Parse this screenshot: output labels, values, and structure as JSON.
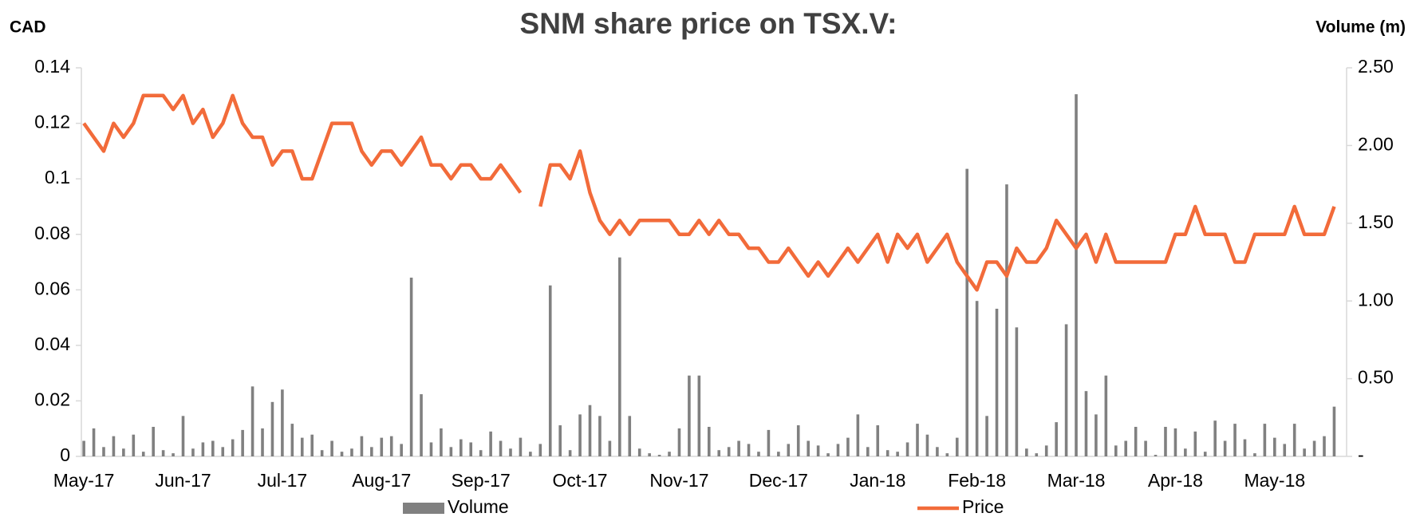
{
  "chart_data": {
    "type": "bar",
    "title": "SNM share price on TSX.V:",
    "y_label": "CAD",
    "y2_label": "Volume (m)",
    "legend": "bottom",
    "categories": [
      "May-17",
      null,
      null,
      null,
      null,
      null,
      null,
      null,
      null,
      null,
      "Jun-17",
      null,
      null,
      null,
      null,
      null,
      null,
      null,
      null,
      null,
      "Jul-17",
      null,
      null,
      null,
      null,
      null,
      null,
      null,
      null,
      null,
      "Aug-17",
      null,
      null,
      null,
      null,
      null,
      null,
      null,
      null,
      null,
      "Sep-17",
      null,
      null,
      null,
      null,
      null,
      null,
      null,
      null,
      null,
      "Oct-17",
      null,
      null,
      null,
      null,
      null,
      null,
      null,
      null,
      null,
      "Nov-17",
      null,
      null,
      null,
      null,
      null,
      null,
      null,
      null,
      null,
      "Dec-17",
      null,
      null,
      null,
      null,
      null,
      null,
      null,
      null,
      null,
      "Jan-18",
      null,
      null,
      null,
      null,
      null,
      null,
      null,
      null,
      null,
      "Feb-18",
      null,
      null,
      null,
      null,
      null,
      null,
      null,
      null,
      null,
      "Mar-18",
      null,
      null,
      null,
      null,
      null,
      null,
      null,
      null,
      null,
      "Apr-18",
      null,
      null,
      null,
      null,
      null,
      null,
      null,
      null,
      null,
      "May-18",
      null,
      null,
      null,
      null,
      null,
      null
    ],
    "series": [
      {
        "name": "Volume",
        "type": "bar",
        "axis": "y2",
        "color": "#808080",
        "values": [
          0.1,
          0.18,
          0.06,
          0.13,
          0.05,
          0.14,
          0.03,
          0.19,
          0.04,
          0.02,
          0.26,
          0.05,
          0.09,
          0.1,
          0.06,
          0.11,
          0.17,
          0.45,
          0.18,
          0.35,
          0.43,
          0.21,
          0.12,
          0.14,
          0.04,
          0.1,
          0.03,
          0.05,
          0.13,
          0.06,
          0.12,
          0.13,
          0.08,
          1.15,
          0.4,
          0.09,
          0.18,
          0.06,
          0.11,
          0.09,
          0.04,
          0.16,
          0.1,
          0.05,
          0.12,
          0.03,
          0.08,
          1.1,
          0.2,
          0.04,
          0.27,
          0.33,
          0.26,
          0.1,
          1.28,
          0.26,
          0.05,
          0.02,
          0.01,
          0.03,
          0.18,
          0.52,
          0.52,
          0.19,
          0.04,
          0.06,
          0.1,
          0.08,
          0.03,
          0.17,
          0.03,
          0.08,
          0.2,
          0.1,
          0.07,
          0.02,
          0.08,
          0.12,
          0.27,
          0.06,
          0.2,
          0.04,
          0.03,
          0.09,
          0.21,
          0.14,
          0.06,
          0.02,
          0.12,
          1.85,
          1.0,
          0.26,
          0.95,
          1.75,
          0.83,
          0.05,
          0.02,
          0.07,
          0.22,
          0.85,
          2.33,
          0.42,
          0.27,
          0.52,
          0.07,
          0.1,
          0.19,
          0.1,
          0.01,
          0.19,
          0.18,
          0.05,
          0.16,
          0.03,
          0.23,
          0.1,
          0.21,
          0.11,
          0.02,
          0.21,
          0.12,
          0.08,
          0.21,
          0.05,
          0.1,
          0.13,
          0.32
        ]
      },
      {
        "name": "Price",
        "type": "line",
        "axis": "y",
        "color": "#f26b3a",
        "values": [
          0.12,
          0.115,
          0.11,
          0.12,
          0.115,
          0.12,
          0.13,
          0.13,
          0.13,
          0.125,
          0.13,
          0.12,
          0.125,
          0.115,
          0.12,
          0.13,
          0.12,
          0.115,
          0.115,
          0.105,
          0.11,
          0.11,
          0.1,
          0.1,
          0.11,
          0.12,
          0.12,
          0.12,
          0.11,
          0.105,
          0.11,
          0.11,
          0.105,
          0.11,
          0.115,
          0.105,
          0.105,
          0.1,
          0.105,
          0.105,
          0.1,
          0.1,
          0.105,
          0.1,
          0.095,
          null,
          0.09,
          0.105,
          0.105,
          0.1,
          0.11,
          0.095,
          0.085,
          0.08,
          0.085,
          0.08,
          0.085,
          0.085,
          0.085,
          0.085,
          0.08,
          0.08,
          0.085,
          0.08,
          0.085,
          0.08,
          0.08,
          0.075,
          0.075,
          0.07,
          0.07,
          0.075,
          0.07,
          0.065,
          0.07,
          0.065,
          0.07,
          0.075,
          0.07,
          0.075,
          0.08,
          0.07,
          0.08,
          0.075,
          0.08,
          0.07,
          0.075,
          0.08,
          0.07,
          0.065,
          0.06,
          0.07,
          0.07,
          0.065,
          0.075,
          0.07,
          0.07,
          0.075,
          0.085,
          0.08,
          0.075,
          0.08,
          0.07,
          0.08,
          0.07,
          0.07,
          0.07,
          0.07,
          0.07,
          0.07,
          0.08,
          0.08,
          0.09,
          0.08,
          0.08,
          0.08,
          0.07,
          0.07,
          0.08,
          0.08,
          0.08,
          0.08,
          0.09,
          0.08,
          0.08,
          0.08,
          0.09
        ]
      }
    ],
    "ylim": [
      0,
      0.14
    ],
    "yticks": [
      0,
      0.02,
      0.04,
      0.06,
      0.08,
      0.1,
      0.12,
      0.14
    ],
    "y2lim": [
      0,
      2.5
    ],
    "y2ticks": [
      {
        "value": 0,
        "label": "-"
      },
      {
        "value": 0.5,
        "label": "0.50"
      },
      {
        "value": 1,
        "label": "1.00"
      },
      {
        "value": 1.5,
        "label": "1.50"
      },
      {
        "value": 2,
        "label": "2.00"
      },
      {
        "value": 2.5,
        "label": "2.50"
      }
    ]
  }
}
